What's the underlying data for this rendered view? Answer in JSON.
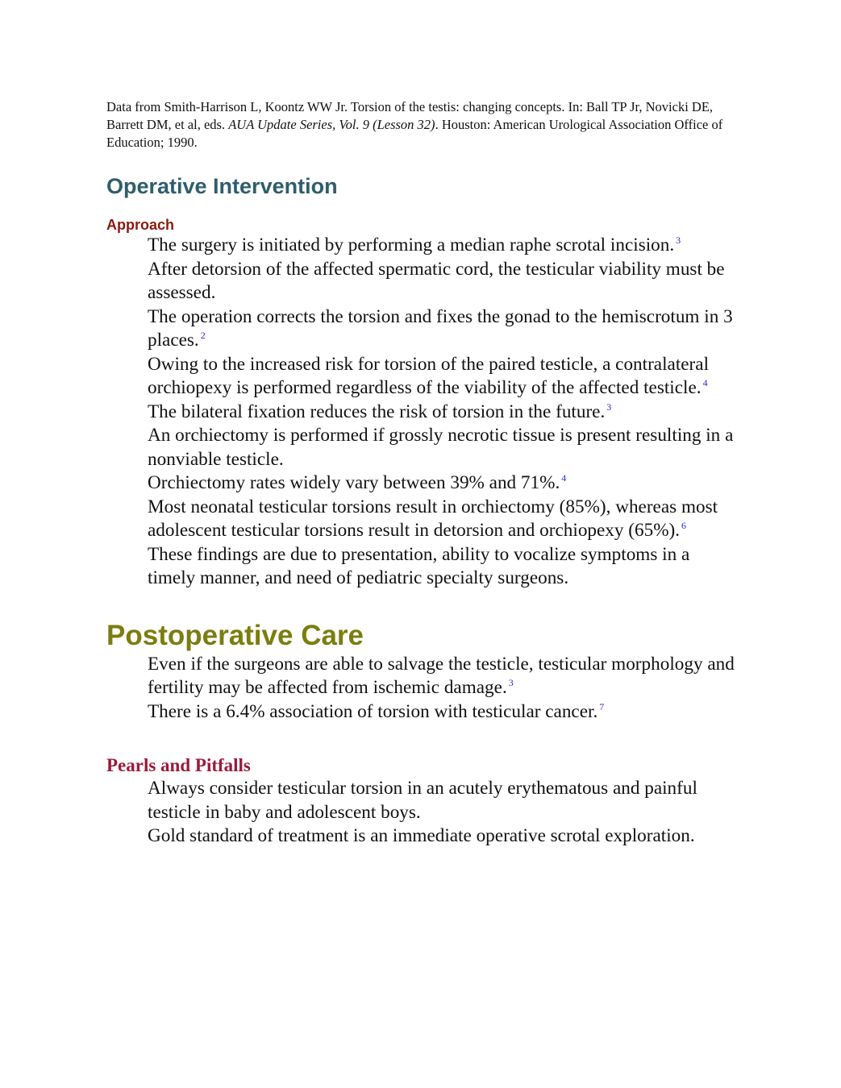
{
  "citation": {
    "text_before": "Data from Smith-Harrison L, Koontz WW Jr. Torsion of the testis: changing concepts. In: Ball TP Jr, Novicki DE, Barrett DM, et al, eds. ",
    "italic": "AUA Update Series, Vol. 9 (Lesson 32)",
    "text_after": ". Houston: American Urological Association Office of Education; 1990."
  },
  "operative": {
    "heading": "Operative Intervention",
    "subheading": "Approach",
    "items": [
      {
        "text": "The surgery is initiated by performing a median raphe scrotal incision.",
        "ref": "3"
      },
      {
        "text": "After detorsion of the affected spermatic cord, the testicular viability must be assessed.",
        "ref": ""
      },
      {
        "text": "The operation corrects the torsion and fixes the gonad to the hemiscrotum in 3 places.",
        "ref": "2"
      },
      {
        "text": "Owing to the increased risk for torsion of the paired testicle, a contralateral orchiopexy is performed regardless of the viability of the affected testicle.",
        "ref": "4"
      },
      {
        "text": "The bilateral fixation reduces the risk of torsion in the future.",
        "ref": "3"
      },
      {
        "text": "An orchiectomy is performed if grossly necrotic tissue is present resulting in a nonviable testicle.",
        "ref": ""
      },
      {
        "text": "Orchiectomy rates widely vary between 39% and 71%.",
        "ref": "4"
      },
      {
        "text": "Most neonatal testicular torsions result in orchiectomy (85%), whereas most adolescent testicular torsions result in detorsion and orchiopexy (65%).",
        "ref": "6"
      },
      {
        "text": "These findings are due to presentation, ability to vocalize symptoms in a timely manner, and need of pediatric specialty surgeons.",
        "ref": ""
      }
    ]
  },
  "postoperative": {
    "heading": "Postoperative Care",
    "items": [
      {
        "text": "Even if the surgeons are able to salvage the testicle, testicular morphology and fertility may be affected from ischemic damage.",
        "ref": "3"
      },
      {
        "text": "There is a 6.4% association of torsion with testicular cancer.",
        "ref": "7"
      }
    ]
  },
  "pearls": {
    "heading": "Pearls and Pitfalls",
    "items": [
      {
        "text": "Always consider testicular torsion in an acutely erythematous and painful testicle in baby and adolescent boys.",
        "ref": ""
      },
      {
        "text": "Gold standard of treatment is an immediate operative scrotal exploration.",
        "ref": ""
      }
    ]
  }
}
